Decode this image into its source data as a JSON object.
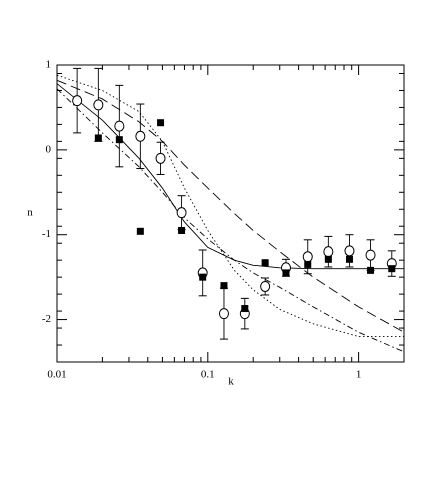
{
  "chart_data": {
    "type": "scatter",
    "xlabel": "k",
    "ylabel": "n",
    "xscale": "log",
    "color": "#000000",
    "xlim": [
      0.01,
      2
    ],
    "ylim": [
      -2.5,
      1
    ],
    "xticks": [
      0.01,
      0.1,
      1
    ],
    "yticks": [
      -2,
      -1,
      0,
      1
    ],
    "series": [
      {
        "marker": "circle",
        "x": [
          0.0136,
          0.0188,
          0.0259,
          0.0357,
          0.0486,
          0.067,
          0.0925,
          0.128,
          0.176,
          0.24,
          0.33,
          0.46,
          0.63,
          0.87,
          1.2,
          1.66
        ],
        "values": [
          0.58,
          0.53,
          0.28,
          0.16,
          -0.1,
          -0.74,
          -1.45,
          -1.93,
          -1.93,
          -1.61,
          -1.39,
          -1.26,
          -1.2,
          -1.19,
          -1.24,
          -1.34
        ],
        "errors": [
          0.38,
          0.43,
          0.48,
          0.38,
          0.19,
          0.2,
          0.27,
          0.3,
          0.18,
          0.1,
          0.1,
          0.2,
          0.18,
          0.19,
          0.18,
          0.15
        ]
      },
      {
        "marker": "square",
        "x": [
          0.0188,
          0.0259,
          0.0357,
          0.0486,
          0.067,
          0.0925,
          0.128,
          0.176,
          0.24,
          0.33,
          0.46,
          0.63,
          0.87,
          1.2,
          1.66
        ],
        "values": [
          0.14,
          0.12,
          -0.96,
          0.32,
          -0.95,
          -1.5,
          -1.6,
          -1.87,
          -1.33,
          -1.45,
          -1.35,
          -1.29,
          -1.29,
          -1.42,
          -1.4
        ]
      }
    ],
    "curves": [
      {
        "dash": "solid",
        "x": [
          0.01,
          0.02,
          0.035,
          0.05,
          0.07,
          0.1,
          0.15,
          0.2,
          0.3,
          0.5,
          1,
          2
        ],
        "values": [
          0.78,
          0.35,
          -0.1,
          -0.45,
          -0.85,
          -1.15,
          -1.3,
          -1.36,
          -1.39,
          -1.4,
          -1.4,
          -1.4
        ]
      },
      {
        "dash": "long-dash",
        "x": [
          0.01,
          0.02,
          0.035,
          0.05,
          0.07,
          0.1,
          0.15,
          0.2,
          0.3,
          0.5,
          1,
          2
        ],
        "values": [
          0.82,
          0.6,
          0.33,
          0.1,
          -0.18,
          -0.45,
          -0.75,
          -0.95,
          -1.2,
          -1.5,
          -1.85,
          -2.15
        ]
      },
      {
        "dash": "dot-dash",
        "x": [
          0.01,
          0.02,
          0.035,
          0.05,
          0.07,
          0.1,
          0.15,
          0.2,
          0.3,
          0.5,
          1,
          2
        ],
        "values": [
          0.72,
          0.2,
          -0.2,
          -0.5,
          -0.8,
          -1.05,
          -1.3,
          -1.45,
          -1.62,
          -1.85,
          -2.15,
          -2.38
        ]
      },
      {
        "dash": "dotted",
        "x": [
          0.01,
          0.02,
          0.035,
          0.05,
          0.07,
          0.1,
          0.15,
          0.2,
          0.3,
          0.5,
          1,
          2
        ],
        "values": [
          0.88,
          0.7,
          0.45,
          0.1,
          -0.45,
          -0.95,
          -1.42,
          -1.65,
          -1.88,
          -2.05,
          -2.2,
          -2.2
        ]
      }
    ]
  }
}
